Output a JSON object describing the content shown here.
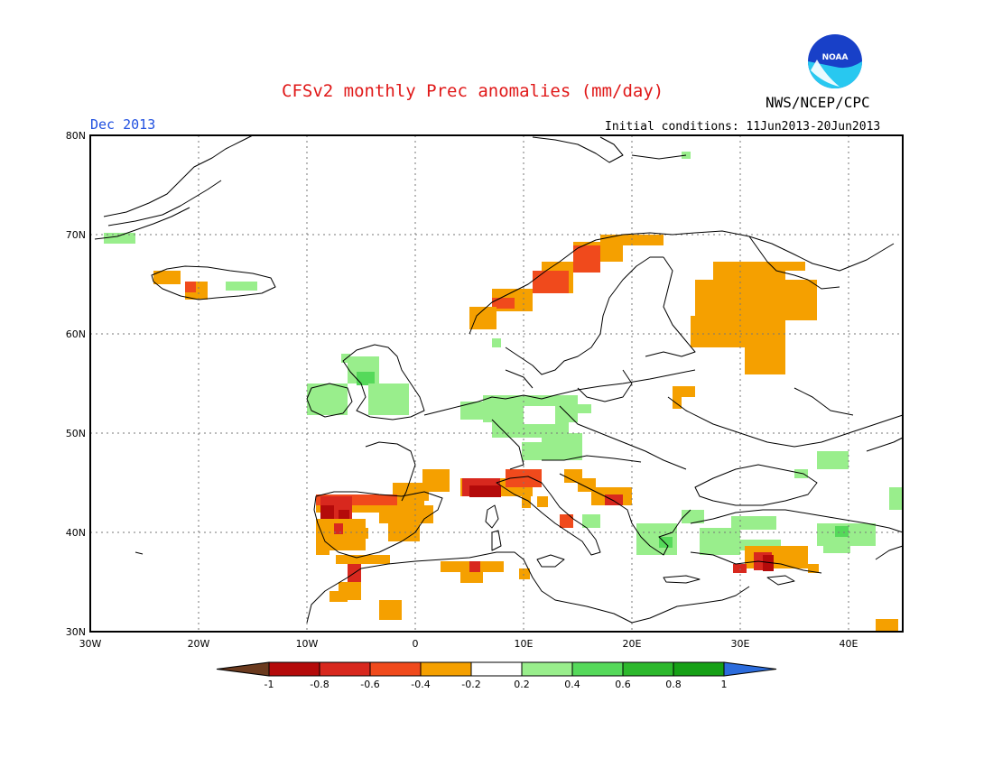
{
  "header": {
    "title": "CFSv2 monthly Prec anomalies (mm/day)",
    "org": "NWS/NCEP/CPC",
    "period": "Dec 2013",
    "initial_conditions": "Initial conditions: 11Jun2013-20Jun2013",
    "logo_text": "NOAA"
  },
  "map": {
    "lat_ticks": [
      "80N",
      "70N",
      "60N",
      "50N",
      "40N",
      "30N"
    ],
    "lon_ticks": [
      "30W",
      "20W",
      "10W",
      "0",
      "10E",
      "20E",
      "30E",
      "40E"
    ],
    "lon_range": [
      -30,
      45
    ],
    "lat_range": [
      30,
      80
    ]
  },
  "colorbar": {
    "labels": [
      "-1",
      "-0.8",
      "-0.6",
      "-0.4",
      "-0.2",
      "0.2",
      "0.4",
      "0.6",
      "0.8",
      "1"
    ],
    "colors": [
      "#6b3a1e",
      "#b40a0a",
      "#d8281e",
      "#f04a1c",
      "#f5a000",
      "#ffffff",
      "#99ee8c",
      "#55d95a",
      "#2cb82c",
      "#16a016",
      "#2c6cdc"
    ]
  },
  "colors": {
    "title": "#e01818",
    "period": "#2050e0",
    "logo_blue": "#1840c8",
    "logo_cyan": "#28c8f0"
  }
}
